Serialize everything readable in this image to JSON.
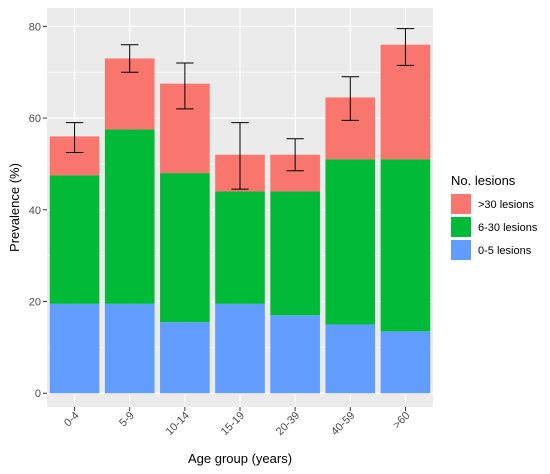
{
  "chart_data": {
    "type": "bar",
    "stacked": true,
    "categories": [
      "0-4",
      "5-9",
      "10-14",
      "15-19",
      "20-39",
      "40-59",
      ">60"
    ],
    "series": [
      {
        "name": "0-5 lesions",
        "color": "#619CFF",
        "values": [
          19.5,
          19.5,
          15.5,
          19.5,
          17,
          15,
          13.5
        ]
      },
      {
        "name": "6-30 lesions",
        "color": "#00BA38",
        "values": [
          28,
          38,
          32.5,
          24.5,
          27,
          36,
          37.5
        ]
      },
      {
        "name": ">30 lesions",
        "color": "#F8766D",
        "values": [
          8.5,
          15.5,
          19.5,
          8,
          8,
          13.5,
          25
        ]
      }
    ],
    "totals": [
      56,
      73,
      67.5,
      52,
      52,
      64.5,
      76
    ],
    "error_bars": [
      {
        "low": 52.5,
        "high": 59
      },
      {
        "low": 70,
        "high": 76
      },
      {
        "low": 62,
        "high": 72
      },
      {
        "low": 44.5,
        "high": 59
      },
      {
        "low": 48.5,
        "high": 55.5
      },
      {
        "low": 59.5,
        "high": 69
      },
      {
        "low": 71.5,
        "high": 79.5
      }
    ],
    "xlabel": "Age group (years)",
    "ylabel": "Prevalence (%)",
    "ylim": [
      -3,
      84
    ],
    "yticks": [
      "0",
      "20",
      "40",
      "60",
      "80"
    ],
    "legend": {
      "title": "No. lesions",
      "position": "right",
      "items": [
        ">30 lesions",
        "6-30 lesions",
        "0-5 lesions"
      ]
    },
    "grid": true,
    "panel_background": "#EBEBEB"
  }
}
